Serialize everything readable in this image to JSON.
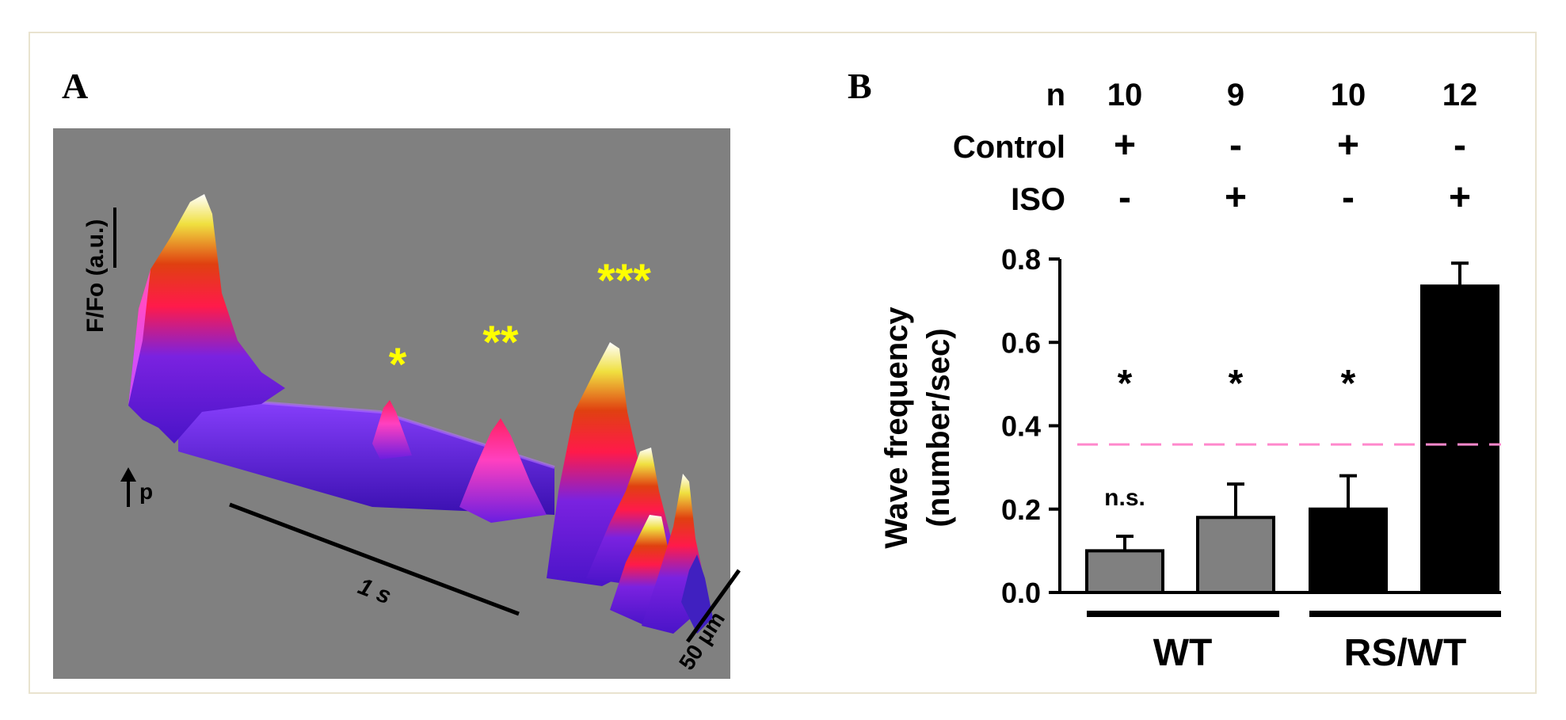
{
  "panel_a": {
    "label": "A",
    "y_scale_label": "F/Fo (a.u.)",
    "time_scale_label": "1 s",
    "space_scale_label": "50 μm",
    "arrow_label": "p",
    "wave_stars": [
      "*",
      "**",
      "***"
    ],
    "colors": {
      "background": "#808080",
      "base": "#5a1fe0",
      "mid": "#ff1a4a",
      "peak": "#ffff40",
      "tip": "#ffffff"
    }
  },
  "panel_b": {
    "label": "B",
    "condition_table": {
      "row_labels": [
        "n",
        "Control",
        "ISO"
      ],
      "columns": [
        {
          "n": "10",
          "control": "+",
          "iso": "-"
        },
        {
          "n": "9",
          "control": "-",
          "iso": "+"
        },
        {
          "n": "10",
          "control": "+",
          "iso": "-"
        },
        {
          "n": "12",
          "control": "-",
          "iso": "+"
        }
      ]
    },
    "groups": [
      "WT",
      "RS/WT"
    ]
  },
  "chart_data": {
    "type": "bar",
    "categories": [
      "WT Control",
      "WT ISO",
      "RS/WT Control",
      "RS/WT ISO"
    ],
    "values": [
      0.1,
      0.18,
      0.2,
      0.735
    ],
    "errors": [
      0.035,
      0.08,
      0.08,
      0.055
    ],
    "bar_colors": [
      "#808080",
      "#808080",
      "#000000",
      "#000000"
    ],
    "annotations": [
      "*",
      "*",
      "*",
      ""
    ],
    "bar_top_labels": [
      "n.s.",
      "",
      "",
      ""
    ],
    "reference_line": 0.355,
    "reference_color": "#ff88cc",
    "ylabel_line1": "Wave frequency",
    "ylabel_line2": "(number/sec)",
    "ylim": [
      0,
      0.8
    ],
    "yticks": [
      "0.0",
      "0.2",
      "0.4",
      "0.6",
      "0.8"
    ],
    "ytick_values": [
      0,
      0.2,
      0.4,
      0.6,
      0.8
    ]
  }
}
